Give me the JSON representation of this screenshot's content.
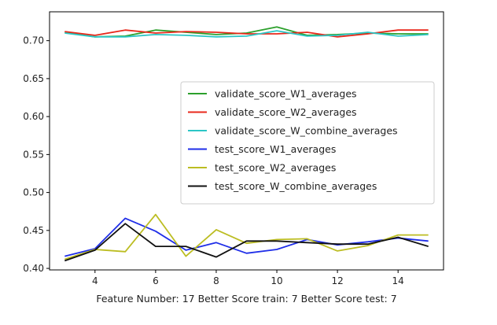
{
  "chart_data": {
    "type": "line",
    "title": "",
    "xlabel": "Feature Number: 17 Better Score train: 7 Better Score test: 7",
    "ylabel": "",
    "xlim": [
      2.5,
      15.5
    ],
    "ylim": [
      0.398,
      0.738
    ],
    "xticks": [
      4,
      6,
      8,
      10,
      12,
      14
    ],
    "yticks": [
      0.4,
      0.45,
      0.5,
      0.55,
      0.6,
      0.65,
      0.7
    ],
    "ytick_labels": [
      "0.40",
      "0.45",
      "0.50",
      "0.55",
      "0.60",
      "0.65",
      "0.70"
    ],
    "grid": false,
    "legend_position": "center-right",
    "x": [
      3,
      4,
      5,
      6,
      7,
      8,
      9,
      10,
      11,
      12,
      13,
      14,
      15
    ],
    "series": [
      {
        "name": "validate_score_W1_averages",
        "color": "#2ca02c",
        "values": [
          0.711,
          0.705,
          0.706,
          0.714,
          0.711,
          0.708,
          0.71,
          0.718,
          0.707,
          0.708,
          0.71,
          0.709,
          0.709
        ]
      },
      {
        "name": "validate_score_W2_averages",
        "color": "#e8291c",
        "values": [
          0.712,
          0.707,
          0.714,
          0.71,
          0.712,
          0.711,
          0.709,
          0.709,
          0.711,
          0.705,
          0.709,
          0.714,
          0.714
        ]
      },
      {
        "name": "validate_score_W_combine_averages",
        "color": "#2cc6c6",
        "values": [
          0.71,
          0.705,
          0.705,
          0.708,
          0.707,
          0.705,
          0.706,
          0.713,
          0.706,
          0.707,
          0.711,
          0.706,
          0.708
        ]
      },
      {
        "name": "test_score_W1_averages",
        "color": "#1f2ee8",
        "values": [
          0.416,
          0.426,
          0.466,
          0.449,
          0.424,
          0.434,
          0.42,
          0.425,
          0.438,
          0.431,
          0.435,
          0.44,
          0.436
        ]
      },
      {
        "name": "test_score_W2_averages",
        "color": "#bcbd22",
        "values": [
          0.412,
          0.425,
          0.422,
          0.471,
          0.416,
          0.451,
          0.433,
          0.438,
          0.439,
          0.423,
          0.43,
          0.444,
          0.444
        ]
      },
      {
        "name": "test_score_W_combine_averages",
        "color": "#111111",
        "values": [
          0.41,
          0.424,
          0.459,
          0.429,
          0.429,
          0.415,
          0.436,
          0.436,
          0.434,
          0.432,
          0.432,
          0.441,
          0.429
        ]
      }
    ]
  }
}
